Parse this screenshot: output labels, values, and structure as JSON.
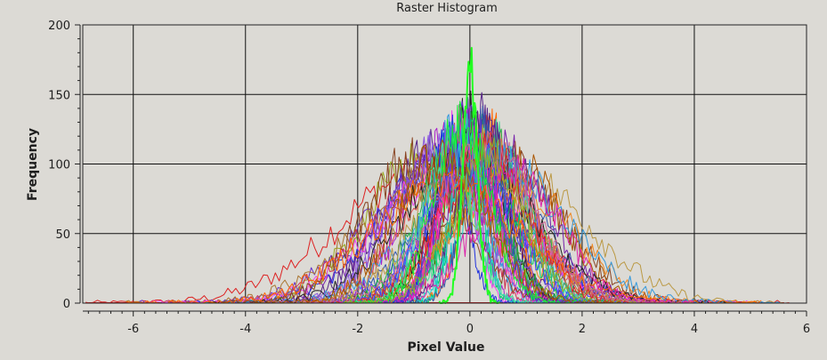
{
  "window": {
    "background": "#dcdad5",
    "plot_background": "#dcdad5",
    "grid_color": "#111111"
  },
  "chart_data": {
    "type": "line",
    "title": "Raster Histogram",
    "xlabel": "Pixel Value",
    "ylabel": "Frequency",
    "xlim": [
      -6.9,
      6.0
    ],
    "ylim": [
      0,
      200
    ],
    "xticks": [
      -6,
      -4,
      -2,
      0,
      2,
      4,
      6
    ],
    "yticks": [
      0,
      50,
      100,
      150,
      200
    ],
    "grid": true,
    "legend": "none",
    "series_count": 60,
    "series_colors": [
      "#dd2222",
      "#7722aa",
      "#2233dd",
      "#aa7733",
      "#22aa44",
      "#dd22aa",
      "#ee8822",
      "#22cccc",
      "#552288",
      "#bb9944",
      "#cc3355",
      "#3355aa",
      "#11ee33",
      "#aa22cc",
      "#ff6600",
      "#33aa88",
      "#884422",
      "#ee44ee",
      "#4444ff",
      "#99aa22",
      "#222222",
      "#cc6699",
      "#00cc66",
      "#6633cc",
      "#dd5555",
      "#3399dd",
      "#aa5500",
      "#ff33aa",
      "#44dd99",
      "#8855dd"
    ],
    "highlight_series": {
      "name": "",
      "color": "#22ff22",
      "mean": 0.0,
      "stdev": 0.13,
      "peak": 168
    },
    "series": [
      {
        "color_index": 0,
        "mean": -0.75,
        "stdev": 1.55,
        "peak": 95
      },
      {
        "color_index": 1,
        "mean": -0.4,
        "stdev": 1.1,
        "peak": 100
      },
      {
        "color_index": 2,
        "mean": -0.3,
        "stdev": 1.2,
        "peak": 105
      },
      {
        "color_index": 3,
        "mean": -0.2,
        "stdev": 0.85,
        "peak": 115
      },
      {
        "color_index": 4,
        "mean": 0.3,
        "stdev": 0.75,
        "peak": 120
      },
      {
        "color_index": 5,
        "mean": 0.0,
        "stdev": 0.45,
        "peak": 130
      },
      {
        "color_index": 6,
        "mean": 0.1,
        "stdev": 0.65,
        "peak": 118
      },
      {
        "color_index": 7,
        "mean": 0.5,
        "stdev": 0.55,
        "peak": 110
      },
      {
        "color_index": 8,
        "mean": -0.6,
        "stdev": 0.9,
        "peak": 112
      },
      {
        "color_index": 9,
        "mean": 0.9,
        "stdev": 1.25,
        "peak": 90
      },
      {
        "color_index": 10,
        "mean": -0.1,
        "stdev": 0.35,
        "peak": 128
      },
      {
        "color_index": 11,
        "mean": 0.2,
        "stdev": 0.95,
        "peak": 112
      },
      {
        "color_index": 12,
        "mean": 0.05,
        "stdev": 0.5,
        "peak": 122
      },
      {
        "color_index": 13,
        "mean": -0.45,
        "stdev": 0.7,
        "peak": 115
      },
      {
        "color_index": 14,
        "mean": 0.35,
        "stdev": 0.4,
        "peak": 125
      },
      {
        "color_index": 15,
        "mean": -0.15,
        "stdev": 0.6,
        "peak": 119
      },
      {
        "color_index": 16,
        "mean": 0.6,
        "stdev": 1.05,
        "peak": 100
      },
      {
        "color_index": 17,
        "mean": -0.25,
        "stdev": 0.3,
        "peak": 126
      },
      {
        "color_index": 18,
        "mean": 0.15,
        "stdev": 0.85,
        "peak": 114
      },
      {
        "color_index": 19,
        "mean": -0.85,
        "stdev": 1.0,
        "peak": 103
      },
      {
        "color_index": 20,
        "mean": 0.0,
        "stdev": 0.55,
        "peak": 135
      },
      {
        "color_index": 21,
        "mean": 0.45,
        "stdev": 0.65,
        "peak": 108
      },
      {
        "color_index": 22,
        "mean": -0.05,
        "stdev": 0.25,
        "peak": 124
      },
      {
        "color_index": 23,
        "mean": -0.5,
        "stdev": 1.3,
        "peak": 96
      },
      {
        "color_index": 24,
        "mean": 0.25,
        "stdev": 0.8,
        "peak": 116
      },
      {
        "color_index": 25,
        "mean": -0.3,
        "stdev": 0.5,
        "peak": 121
      },
      {
        "color_index": 26,
        "mean": 0.7,
        "stdev": 0.9,
        "peak": 104
      },
      {
        "color_index": 27,
        "mean": -0.1,
        "stdev": 0.42,
        "peak": 127
      },
      {
        "color_index": 28,
        "mean": 0.4,
        "stdev": 0.6,
        "peak": 117
      },
      {
        "color_index": 29,
        "mean": -0.7,
        "stdev": 0.75,
        "peak": 107
      }
    ]
  }
}
